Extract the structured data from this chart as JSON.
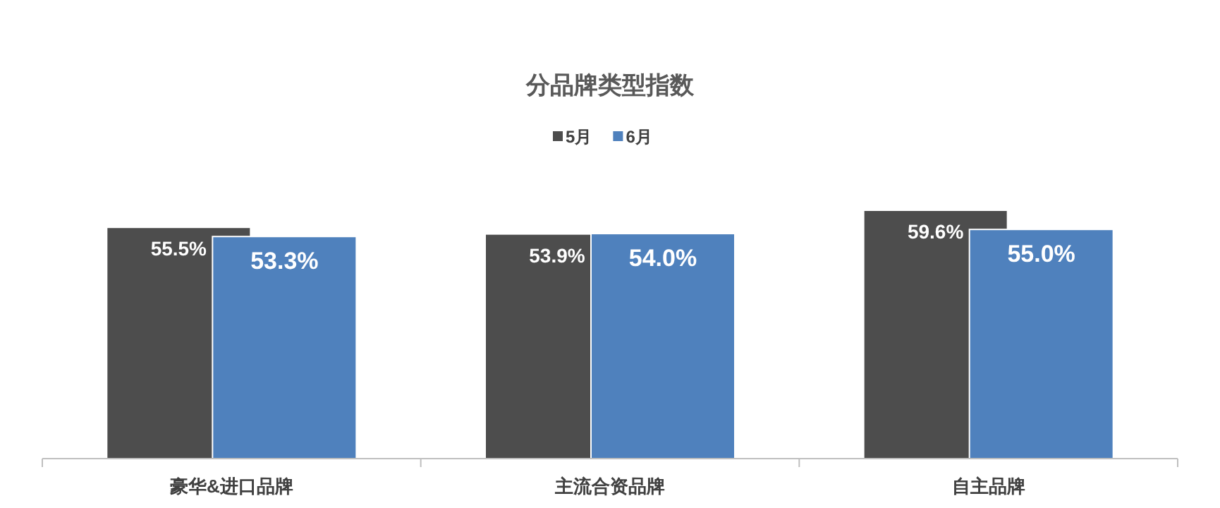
{
  "chart_data": {
    "type": "bar",
    "title": "分品牌类型指数",
    "categories": [
      "豪华&进口品牌",
      "主流合资品牌",
      "自主品牌"
    ],
    "legend": "top",
    "series": [
      {
        "name": "5月",
        "color": "#4d4d4d",
        "values": [
          55.5,
          53.9,
          59.6
        ],
        "value_labels": [
          "55.5%",
          "53.9%",
          "59.6%"
        ]
      },
      {
        "name": "6月",
        "color": "#4f81bd",
        "values": [
          53.3,
          54.0,
          55.0
        ],
        "value_labels": [
          "53.3%",
          "54.0%",
          "55.0%"
        ]
      }
    ]
  }
}
